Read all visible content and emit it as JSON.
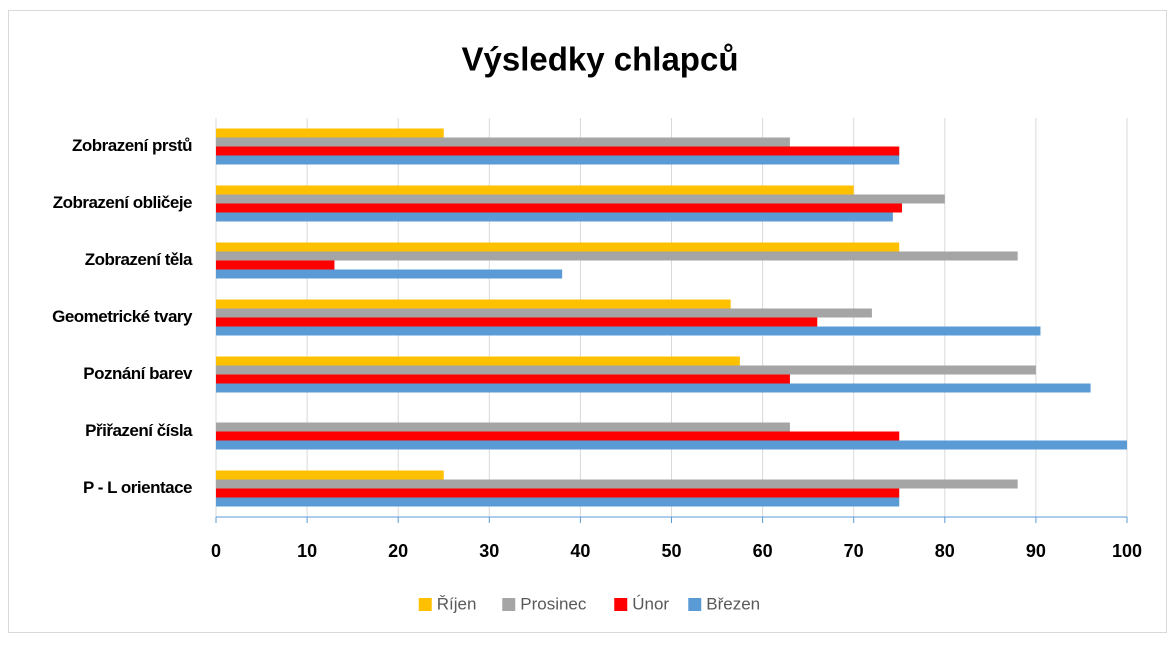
{
  "chart_data": {
    "type": "hbar",
    "title": "Výsledky chlapců",
    "categories": [
      "Zobrazení prstů",
      "Zobrazení obličeje",
      "Zobrazení těla",
      "Geometrické tvary",
      "Poznání barev",
      "Přiřazení čísla",
      "P - L orientace"
    ],
    "series": [
      {
        "name": "Říjen",
        "color": "#ffc000",
        "values": [
          25,
          70,
          75,
          56.5,
          57.5,
          0,
          25
        ]
      },
      {
        "name": "Prosinec",
        "color": "#a5a5a5",
        "values": [
          63,
          80,
          88,
          72,
          90,
          63,
          88
        ]
      },
      {
        "name": "Únor",
        "color": "#ff0000",
        "values": [
          75,
          75.3,
          13,
          66,
          63,
          75,
          75
        ]
      },
      {
        "name": "Březen",
        "color": "#5b9bd5",
        "values": [
          75,
          74.3,
          38,
          90.5,
          96,
          100,
          75
        ]
      }
    ],
    "xlim": [
      0,
      100
    ],
    "xticks": [
      0,
      10,
      20,
      30,
      40,
      50,
      60,
      70,
      80,
      90,
      100
    ],
    "grid": true,
    "legend": "bottom"
  }
}
